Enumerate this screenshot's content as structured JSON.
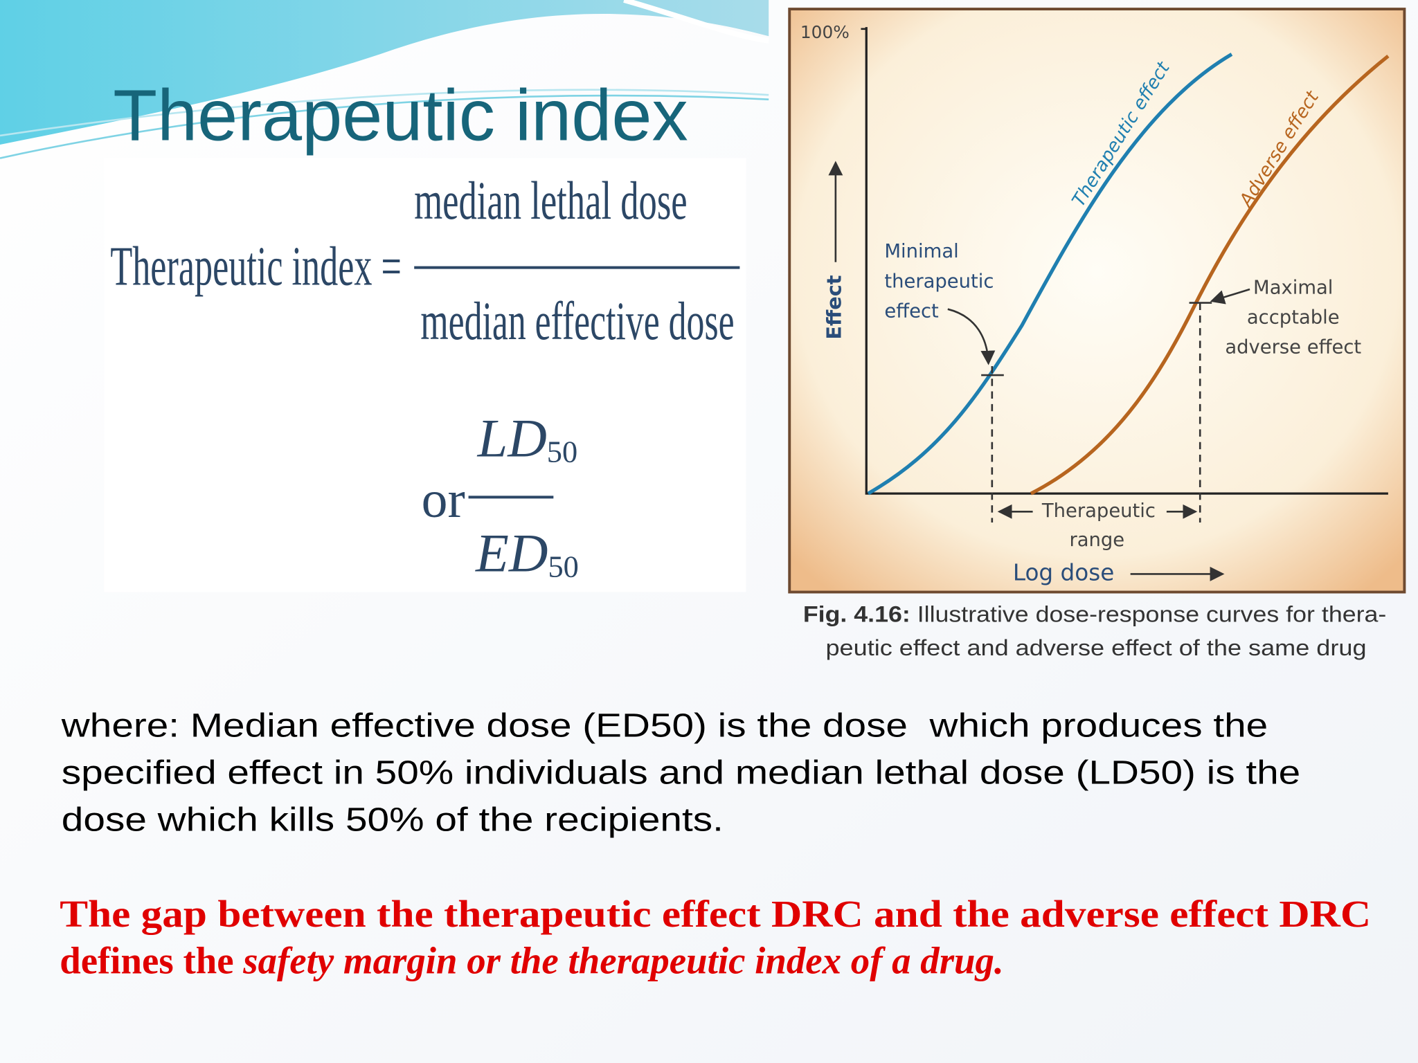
{
  "title": "Therapeutic index",
  "formula": {
    "lhs": "Therapeutic index =",
    "numerator": "median lethal dose",
    "denominator": "median effective dose",
    "or": "or",
    "alt_numerator": {
      "base": "LD",
      "sub": "50"
    },
    "alt_denominator": {
      "base": "ED",
      "sub": "50"
    }
  },
  "figure": {
    "y_max_label": "100%",
    "y_label": "Effect",
    "x_label": "Log dose",
    "curve_labels": [
      "Therapeutic effect",
      "Adverse effect"
    ],
    "min_annotation": [
      "Minimal",
      "therapeutic",
      "effect"
    ],
    "max_annotation": [
      "Maximal",
      "accptable",
      "adverse effect"
    ],
    "range_label": [
      "Therapeutic",
      "range"
    ],
    "caption": {
      "label": "Fig. 4.16:",
      "lines": [
        "Illustrative dose-response curves for thera-",
        "peutic effect and adverse effect of the same drug"
      ]
    }
  },
  "body": [
    "where: Median effective dose (ED50) is the dose  which produces the",
    "specified effect in 50% individuals and median lethal dose (LD50) is the",
    "dose which kills 50% of the recipients."
  ],
  "highlight": {
    "line1": "The gap between the therapeutic effect DRC and the adverse effect DRC",
    "line2_normal": "defines the ",
    "line2_italic": "safety margin or the therapeutic index of a drug."
  }
}
